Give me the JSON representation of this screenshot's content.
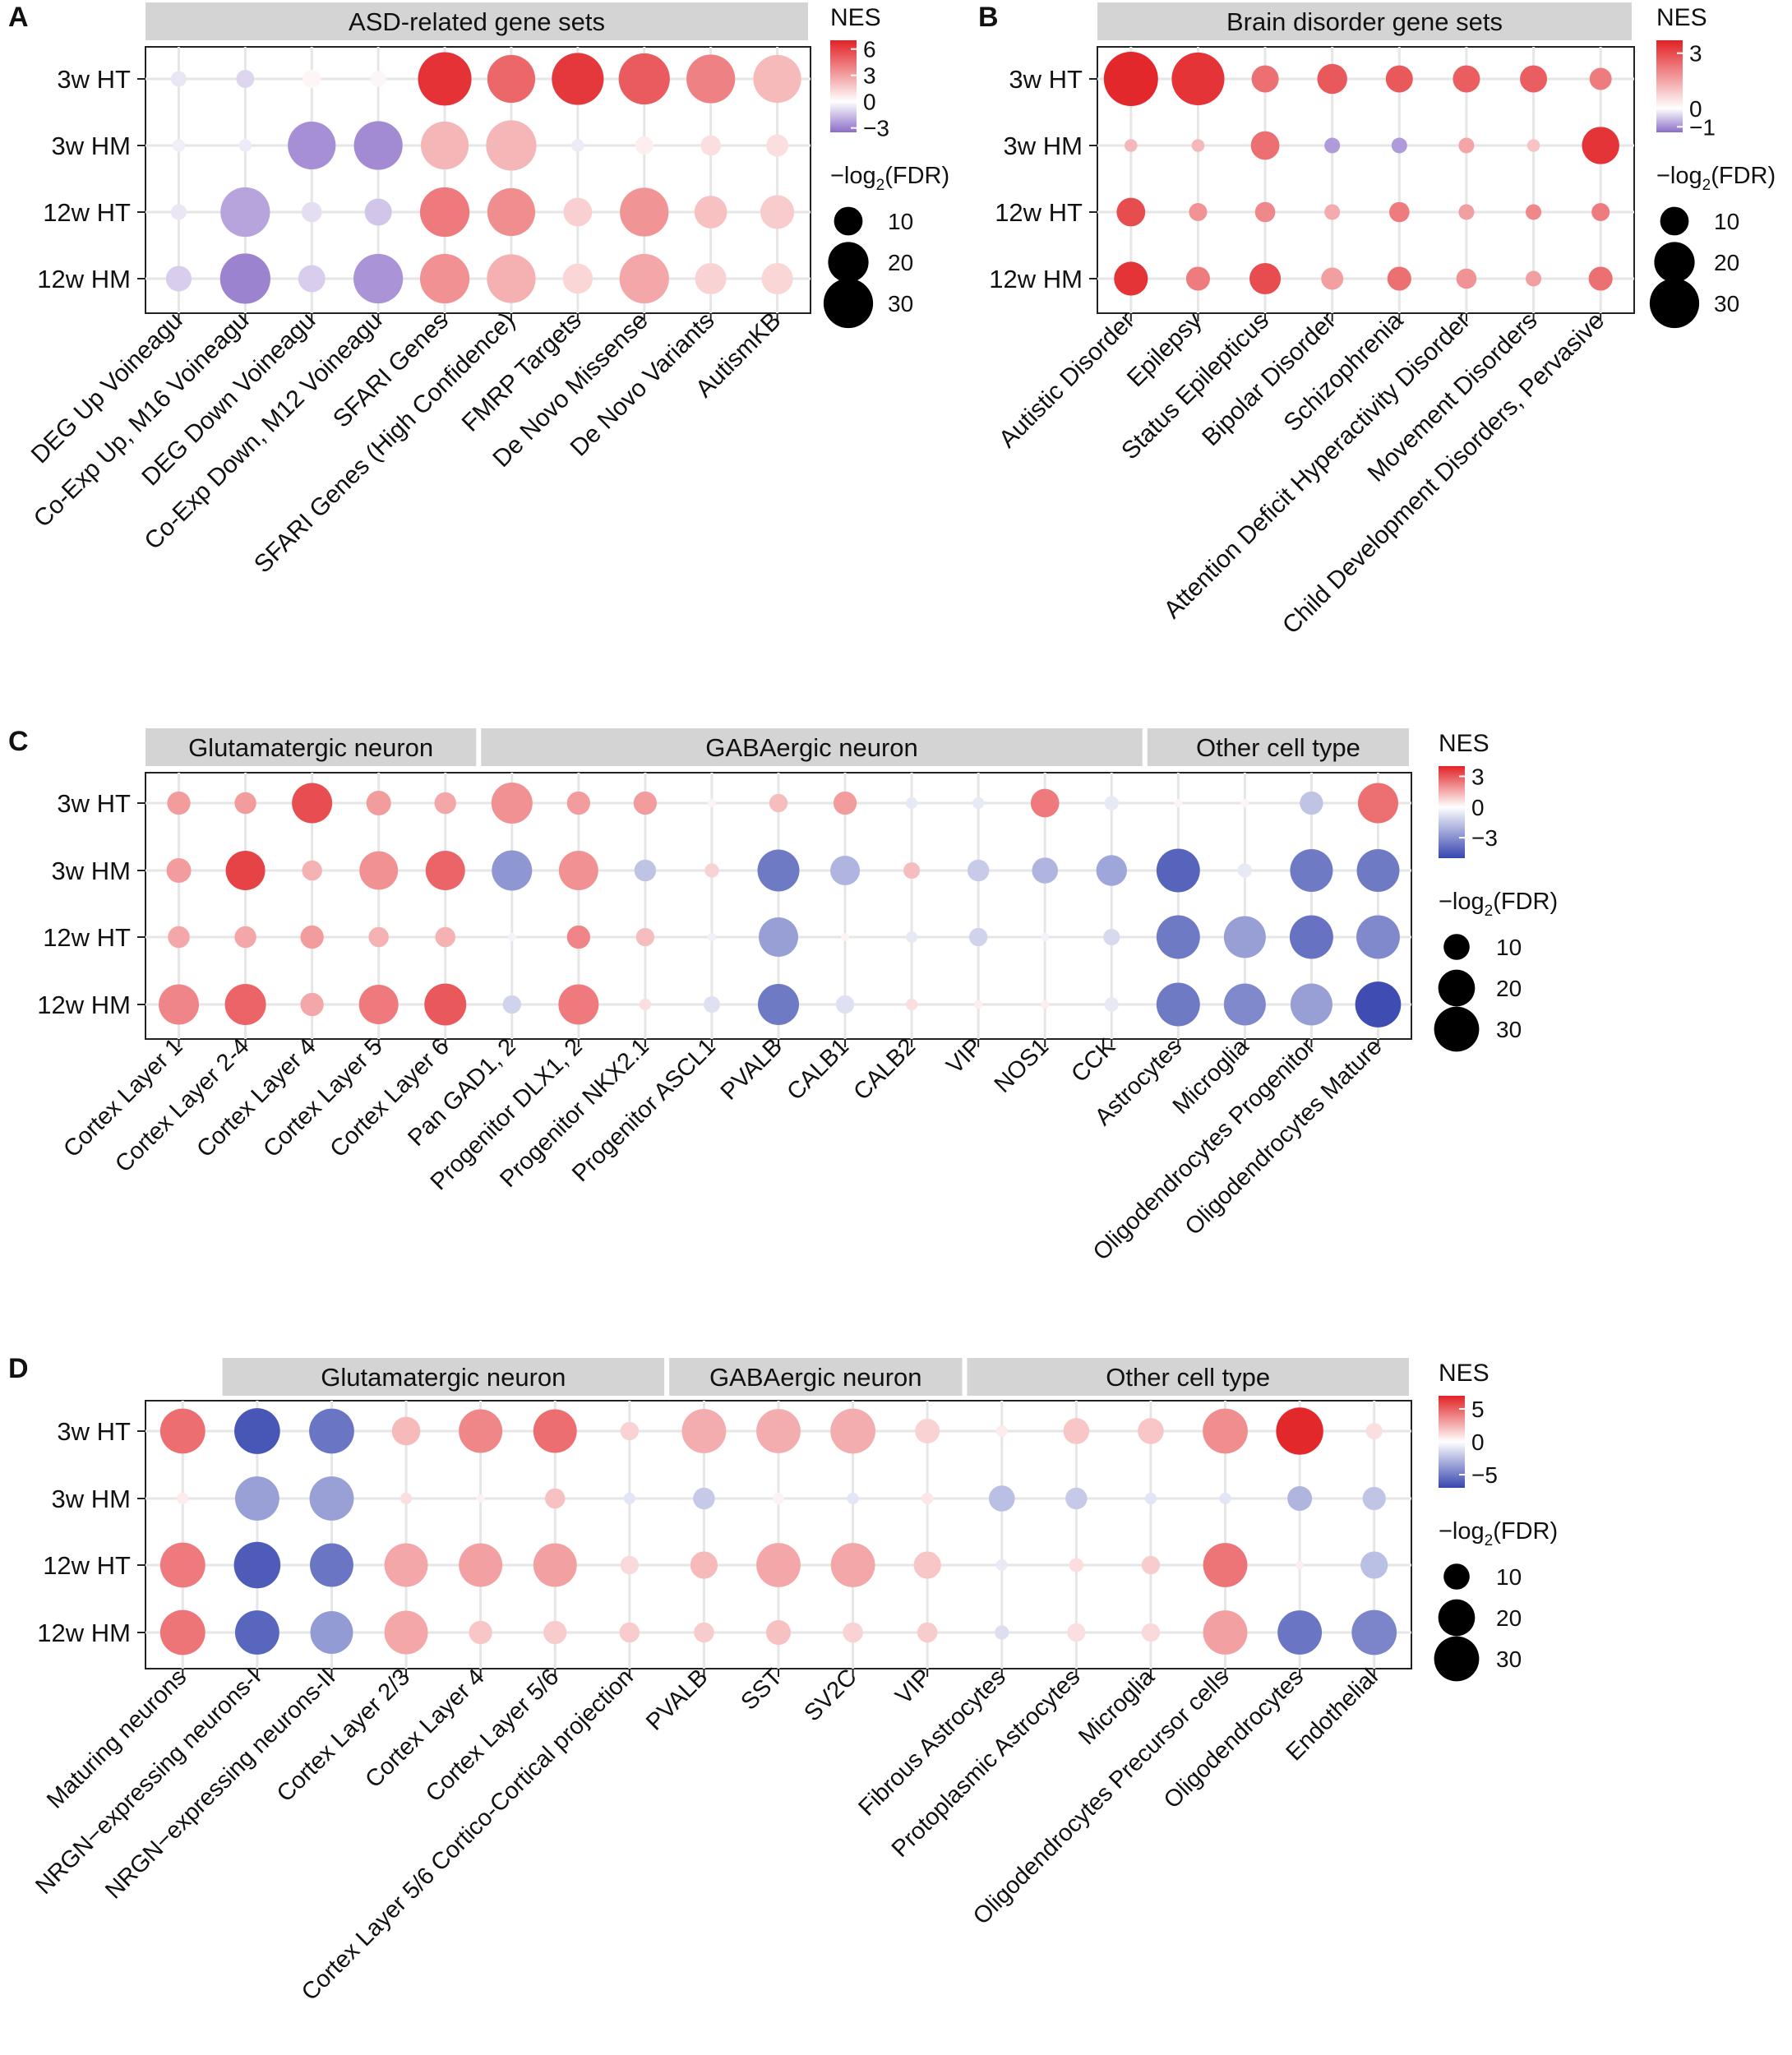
{
  "chart_data": [
    {
      "panel": "A",
      "type": "bubble",
      "facets": [
        {
          "title": "ASD-related gene sets",
          "span": [
            0,
            9
          ]
        }
      ],
      "rows": [
        "3w HT",
        "3w HM",
        "12w HT",
        "12w HM"
      ],
      "columns": [
        "DEG Up Voineagu",
        "Co-Exp Up, M16 Voineagu",
        "DEG Down Voineagu",
        "Co-Exp Down, M12 Voineagu",
        "SFARI Genes",
        "SFARI Genes (High Confidence)",
        "FMRP Targets",
        "De Novo Missense",
        "De Novo Variants",
        "AutismKB"
      ],
      "nes": [
        [
          -0.6,
          -1.0,
          0.3,
          0.3,
          6.5,
          4.8,
          6.3,
          5.2,
          4.0,
          2.2
        ],
        [
          -0.4,
          -0.5,
          -2.7,
          -2.8,
          2.3,
          2.3,
          -0.5,
          0.5,
          1.0,
          1.0
        ],
        [
          -0.6,
          -2.2,
          -0.8,
          -1.4,
          4.2,
          3.6,
          1.5,
          3.4,
          2.0,
          1.6
        ],
        [
          -1.2,
          -3.0,
          -1.2,
          -2.6,
          3.5,
          2.5,
          1.3,
          2.8,
          1.4,
          1.3
        ]
      ],
      "neglog2fdr": [
        [
          3,
          4,
          4,
          3,
          35,
          28,
          33,
          32,
          29,
          28
        ],
        [
          2,
          2,
          28,
          29,
          28,
          31,
          2,
          4,
          5,
          6
        ],
        [
          3,
          30,
          5,
          9,
          30,
          28,
          10,
          29,
          13,
          14
        ],
        [
          8,
          31,
          9,
          30,
          30,
          29,
          11,
          30,
          12,
          12
        ]
      ],
      "legend": {
        "color_title": "NES",
        "color_ticks": [
          6,
          3,
          0,
          -3
        ],
        "color_range": [
          -3.5,
          7
        ],
        "size_title": "−log2(FDR)",
        "size_ticks": [
          10,
          20,
          30
        ]
      }
    },
    {
      "panel": "B",
      "type": "bubble",
      "facets": [
        {
          "title": "Brain disorder gene sets",
          "span": [
            0,
            7
          ]
        }
      ],
      "rows": [
        "3w HT",
        "3w HM",
        "12w HT",
        "12w HM"
      ],
      "columns": [
        "Autistic Disorder",
        "Epilepsy",
        "Status Epilepticus",
        "Bipolar Disorder",
        "Schizophrenia",
        "Attention Deficit Hyperactivity Disorder",
        "Movement Disorders",
        "Child Development Disorders, Pervasive"
      ],
      "nes": [
        [
          3.6,
          3.4,
          2.4,
          2.8,
          2.8,
          2.7,
          2.7,
          2.2
        ],
        [
          1.2,
          1.2,
          2.4,
          -0.9,
          -0.9,
          1.5,
          1.0,
          3.4
        ],
        [
          3.0,
          1.8,
          2.0,
          1.4,
          2.2,
          1.6,
          2.0,
          2.2
        ],
        [
          3.4,
          2.2,
          3.0,
          1.6,
          2.4,
          1.8,
          1.6,
          2.4
        ]
      ],
      "neglog2fdr": [
        [
          36,
          34,
          9,
          11,
          9,
          9,
          9,
          6
        ],
        [
          2,
          2,
          10,
          3,
          3,
          3,
          2,
          17
        ],
        [
          10,
          4,
          5,
          3,
          5,
          3,
          3,
          4
        ],
        [
          14,
          7,
          12,
          6,
          7,
          5,
          3,
          7
        ]
      ],
      "legend": {
        "color_title": "NES",
        "color_ticks": [
          3,
          0,
          -1
        ],
        "color_range": [
          -1.3,
          3.7
        ],
        "size_title": "−log2(FDR)",
        "size_ticks": [
          10,
          20,
          30
        ]
      }
    },
    {
      "panel": "C",
      "type": "bubble",
      "facets": [
        {
          "title": "Glutamatergic neuron",
          "span": [
            0,
            4
          ]
        },
        {
          "title": "GABAergic neuron",
          "span": [
            5,
            14
          ]
        },
        {
          "title": "Other cell type",
          "span": [
            15,
            18
          ]
        }
      ],
      "rows": [
        "3w HT",
        "3w HM",
        "12w HT",
        "12w HM"
      ],
      "columns": [
        "Cortex Layer 1",
        "Cortex Layer 2-4",
        "Cortex Layer 4",
        "Cortex Layer 5",
        "Cortex Layer 6",
        "Pan GAD1, 2",
        "Progenitor DLX1, 2",
        "Progenitor NKX2.1",
        "Progenitor ASCL1",
        "PVALB",
        "CALB1",
        "CALB2",
        "VIP",
        "NOS1",
        "CCK",
        "Astrocytes",
        "Microglia",
        "Oligodendrocytes Progenitor",
        "Oligodendrocytes Mature"
      ],
      "nes": [
        [
          1.8,
          1.8,
          3.2,
          1.8,
          1.6,
          2.0,
          1.8,
          1.8,
          0.2,
          1.2,
          1.8,
          -0.6,
          -0.6,
          2.4,
          -0.6,
          0.2,
          0.2,
          -1.6,
          2.6
        ],
        [
          1.8,
          3.4,
          1.4,
          2.0,
          2.8,
          -2.8,
          2.0,
          -1.6,
          0.8,
          -3.6,
          -2.0,
          1.2,
          -1.4,
          -2.0,
          -2.4,
          -4.2,
          -0.6,
          -3.6,
          -3.6
        ],
        [
          1.6,
          1.6,
          1.8,
          1.4,
          1.4,
          -0.3,
          2.2,
          1.2,
          -0.4,
          -2.6,
          0.2,
          -0.6,
          -1.2,
          -0.3,
          -1.0,
          -3.6,
          -2.6,
          -3.8,
          -3.2
        ],
        [
          2.2,
          2.8,
          1.6,
          2.4,
          3.0,
          -1.2,
          2.4,
          0.6,
          -0.8,
          -3.6,
          -0.8,
          0.6,
          0.3,
          0.3,
          -0.6,
          -3.6,
          -3.2,
          -2.6,
          -4.8
        ]
      ],
      "neglog2fdr": [
        [
          8,
          7,
          24,
          9,
          7,
          25,
          8,
          8,
          1,
          5,
          8,
          2,
          2,
          12,
          3,
          1,
          1,
          8,
          24
        ],
        [
          9,
          23,
          6,
          22,
          23,
          24,
          23,
          7,
          3,
          26,
          13,
          4,
          7,
          10,
          14,
          28,
          3,
          27,
          27
        ],
        [
          7,
          7,
          8,
          6,
          6,
          1,
          8,
          5,
          1,
          23,
          1,
          2,
          5,
          1,
          4,
          28,
          26,
          28,
          28
        ],
        [
          24,
          25,
          8,
          23,
          26,
          5,
          24,
          2,
          4,
          25,
          5,
          2,
          1,
          1,
          3,
          28,
          26,
          26,
          31
        ]
      ],
      "legend": {
        "color_title": "NES",
        "color_ticks": [
          3,
          0,
          -3
        ],
        "color_range": [
          -5,
          4
        ],
        "size_title": "−log2(FDR)",
        "size_ticks": [
          10,
          20,
          30
        ]
      }
    },
    {
      "panel": "D",
      "type": "bubble",
      "facets": [
        {
          "title": "Glutamatergic neuron",
          "span": [
            1,
            6
          ]
        },
        {
          "title": "GABAergic neuron",
          "span": [
            7,
            10
          ]
        },
        {
          "title": "Other cell type",
          "span": [
            11,
            16
          ]
        }
      ],
      "rows": [
        "3w HT",
        "3w HM",
        "12w HT",
        "12w HM"
      ],
      "columns": [
        "Maturing neurons",
        "NRGN−expressing neurons-I",
        "NRGN−expressing neurons-II",
        "Cortex Layer 2/3",
        "Cortex Layer 4",
        "Cortex Layer 5/6",
        "Cortex Layer 5/6 Cortico-Cortical projection",
        "PVALB",
        "SST",
        "SV2C",
        "VIP",
        "Fibrous Astrocytes",
        "Protoplasmic Astrocytes",
        "Microglia",
        "Oligodendrocytes Precursor cells",
        "Oligodendrocytes",
        "Endothelial"
      ],
      "nes": [
        [
          4.6,
          -6.4,
          -5.2,
          2.2,
          3.8,
          4.6,
          1.4,
          2.6,
          2.6,
          2.6,
          1.4,
          0.6,
          1.8,
          1.8,
          3.6,
          6.8,
          1.0
        ],
        [
          0.6,
          -3.6,
          -3.6,
          1.0,
          0.4,
          2.0,
          -1.0,
          -2.0,
          0.4,
          -1.0,
          0.8,
          -2.4,
          -2.0,
          -1.0,
          -1.0,
          -2.8,
          -2.2
        ],
        [
          4.2,
          -6.2,
          -5.2,
          2.8,
          3.0,
          3.0,
          1.2,
          2.2,
          2.8,
          2.8,
          1.8,
          -0.8,
          1.0,
          1.6,
          4.4,
          0.5,
          -2.4
        ],
        [
          4.4,
          -5.8,
          -3.8,
          2.8,
          1.8,
          1.6,
          1.6,
          1.6,
          2.0,
          1.4,
          1.6,
          -1.2,
          1.0,
          1.2,
          3.0,
          -5.2,
          -4.6
        ]
      ],
      "neglog2fdr": [
        [
          30,
          31,
          30,
          12,
          28,
          28,
          5,
          29,
          29,
          30,
          9,
          2,
          10,
          10,
          30,
          33,
          4
        ],
        [
          2,
          29,
          29,
          2,
          1,
          6,
          2,
          7,
          2,
          2,
          2,
          10,
          7,
          2,
          2,
          9,
          8
        ],
        [
          30,
          32,
          28,
          28,
          28,
          28,
          5,
          11,
          29,
          29,
          11,
          2,
          3,
          5,
          29,
          1,
          11
        ],
        [
          30,
          29,
          27,
          28,
          8,
          8,
          6,
          6,
          9,
          6,
          6,
          3,
          5,
          5,
          29,
          29,
          30
        ]
      ],
      "legend": {
        "color_title": "NES",
        "color_ticks": [
          5,
          0,
          -5
        ],
        "color_range": [
          -7,
          7
        ],
        "size_title": "−log2(FDR)",
        "size_ticks": [
          10,
          20,
          30
        ]
      }
    }
  ]
}
